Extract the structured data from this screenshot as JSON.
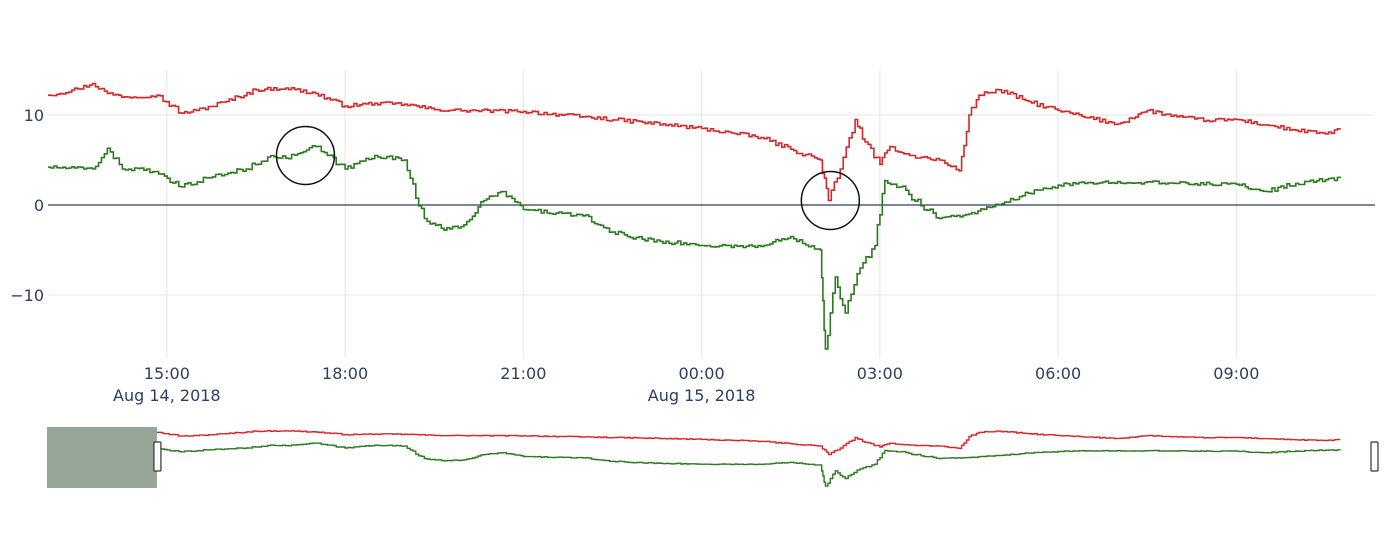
{
  "chart_data": {
    "type": "line",
    "title": "",
    "xlabel": "",
    "ylabel": "",
    "x_range": [
      "2018-08-14 13:00",
      "2018-08-15 11:20"
    ],
    "ylim": [
      -17,
      15
    ],
    "y_ticks": [
      {
        "value": 10,
        "label": "10"
      },
      {
        "value": 0,
        "label": "0"
      },
      {
        "value": -10,
        "label": "−10"
      }
    ],
    "x_ticks": [
      {
        "time": "2018-08-14 15:00",
        "label": "15:00",
        "sublabel": "Aug 14, 2018"
      },
      {
        "time": "2018-08-14 18:00",
        "label": "18:00",
        "sublabel": ""
      },
      {
        "time": "2018-08-14 21:00",
        "label": "21:00",
        "sublabel": ""
      },
      {
        "time": "2018-08-15 00:00",
        "label": "00:00",
        "sublabel": "Aug 15, 2018"
      },
      {
        "time": "2018-08-15 03:00",
        "label": "03:00",
        "sublabel": ""
      },
      {
        "time": "2018-08-15 06:00",
        "label": "06:00",
        "sublabel": ""
      },
      {
        "time": "2018-08-15 09:00",
        "label": "09:00",
        "sublabel": ""
      }
    ],
    "grid": true,
    "legend": "none",
    "series": [
      {
        "color": "#d62728",
        "x": [
          "2018-08-14 13:00",
          "2018-08-14 13:30",
          "2018-08-14 13:45",
          "2018-08-14 14:00",
          "2018-08-14 14:20",
          "2018-08-14 14:50",
          "2018-08-14 15:15",
          "2018-08-14 15:30",
          "2018-08-14 16:00",
          "2018-08-14 16:30",
          "2018-08-14 17:00",
          "2018-08-14 17:30",
          "2018-08-14 18:00",
          "2018-08-14 18:30",
          "2018-08-14 19:00",
          "2018-08-14 19:30",
          "2018-08-14 20:00",
          "2018-08-14 21:00",
          "2018-08-14 22:00",
          "2018-08-14 23:00",
          "2018-08-15 00:00",
          "2018-08-15 00:30",
          "2018-08-15 01:00",
          "2018-08-15 01:30",
          "2018-08-15 02:00",
          "2018-08-15 02:08",
          "2018-08-15 02:20",
          "2018-08-15 02:35",
          "2018-08-15 02:45",
          "2018-08-15 03:00",
          "2018-08-15 03:10",
          "2018-08-15 03:30",
          "2018-08-15 04:00",
          "2018-08-15 04:20",
          "2018-08-15 04:30",
          "2018-08-15 04:40",
          "2018-08-15 05:00",
          "2018-08-15 05:30",
          "2018-08-15 06:00",
          "2018-08-15 06:30",
          "2018-08-15 07:00",
          "2018-08-15 07:30",
          "2018-08-15 08:00",
          "2018-08-15 08:30",
          "2018-08-15 09:00",
          "2018-08-15 09:30",
          "2018-08-15 10:00",
          "2018-08-15 10:30",
          "2018-08-15 10:45"
        ],
        "values": [
          12.2,
          12.9,
          13.5,
          12.4,
          12.0,
          12.2,
          10.2,
          10.5,
          11.5,
          12.8,
          13.0,
          12.4,
          11.0,
          11.3,
          11.2,
          10.6,
          10.5,
          10.4,
          9.8,
          9.2,
          8.5,
          8.0,
          7.5,
          6.2,
          5.0,
          0.5,
          4.0,
          9.5,
          7.0,
          4.5,
          6.5,
          5.5,
          5.0,
          3.8,
          10.0,
          12.2,
          12.8,
          11.5,
          10.5,
          9.7,
          9.0,
          10.5,
          9.8,
          9.4,
          9.5,
          8.9,
          8.3,
          7.9,
          8.5
        ]
      },
      {
        "color": "#2c7a1f",
        "x": [
          "2018-08-14 13:00",
          "2018-08-14 13:45",
          "2018-08-14 14:00",
          "2018-08-14 14:15",
          "2018-08-14 14:40",
          "2018-08-14 15:15",
          "2018-08-14 15:40",
          "2018-08-14 16:20",
          "2018-08-14 16:45",
          "2018-08-14 17:00",
          "2018-08-14 17:30",
          "2018-08-14 18:00",
          "2018-08-14 18:30",
          "2018-08-14 19:00",
          "2018-08-14 19:20",
          "2018-08-14 19:40",
          "2018-08-14 20:00",
          "2018-08-14 20:20",
          "2018-08-14 20:40",
          "2018-08-14 21:00",
          "2018-08-14 22:00",
          "2018-08-14 22:30",
          "2018-08-14 23:00",
          "2018-08-15 00:00",
          "2018-08-15 01:00",
          "2018-08-15 01:30",
          "2018-08-15 02:00",
          "2018-08-15 02:05",
          "2018-08-15 02:15",
          "2018-08-15 02:25",
          "2018-08-15 02:40",
          "2018-08-15 02:55",
          "2018-08-15 03:05",
          "2018-08-15 03:20",
          "2018-08-15 04:00",
          "2018-08-15 04:30",
          "2018-08-15 05:00",
          "2018-08-15 05:30",
          "2018-08-15 06:00",
          "2018-08-15 07:00",
          "2018-08-15 08:00",
          "2018-08-15 09:00",
          "2018-08-15 09:30",
          "2018-08-15 10:00",
          "2018-08-15 10:45"
        ],
        "values": [
          4.2,
          4.0,
          6.3,
          4.0,
          4.0,
          2.0,
          3.0,
          4.0,
          5.5,
          5.2,
          6.5,
          4.0,
          5.5,
          5.0,
          -1.5,
          -2.8,
          -2.2,
          0.5,
          1.5,
          -0.5,
          -1.2,
          -3.0,
          -3.8,
          -4.5,
          -4.6,
          -3.5,
          -5.0,
          -16.0,
          -8.0,
          -12.0,
          -7.0,
          -4.5,
          2.7,
          2.0,
          -1.5,
          -1.0,
          0.0,
          1.3,
          2.2,
          2.6,
          2.4,
          2.3,
          1.5,
          2.4,
          3.0
        ]
      }
    ],
    "annotations": [
      {
        "shape": "circle",
        "center_time": "2018-08-14 17:20",
        "center_value": 5.5
      },
      {
        "shape": "circle",
        "center_time": "2018-08-15 02:10",
        "center_value": 0.5
      }
    ],
    "rangeslider": {
      "visible": true,
      "mask_start": "2018-08-14 13:00",
      "mask_end": "2018-08-14 14:50"
    }
  }
}
